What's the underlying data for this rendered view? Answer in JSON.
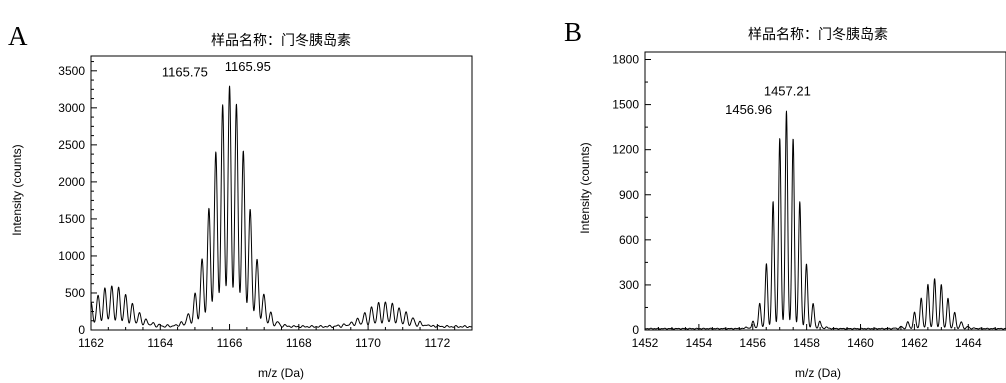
{
  "chart_data": [
    {
      "type": "line",
      "panel": "A",
      "title": "样品名称：门冬胰岛素",
      "xlabel": "m/z (Da)",
      "ylabel": "Intensity (counts)",
      "xlim": [
        1162,
        1173
      ],
      "ylim": [
        0,
        3700
      ],
      "xticks": [
        1162,
        1164,
        1166,
        1168,
        1170,
        1172
      ],
      "yticks": [
        0,
        500,
        1000,
        1500,
        2000,
        2500,
        3000,
        3500
      ],
      "annotations": [
        {
          "text": "1165.75",
          "x": 1165.75,
          "y": 3300
        },
        {
          "text": "1165.95",
          "x": 1165.95,
          "y": 3350
        }
      ],
      "series": [
        {
          "baseline": 60,
          "envelopes": [
            {
              "center": 1162.6,
              "sigma": 0.55,
              "height": 560,
              "spacing": 0.2
            },
            {
              "center": 1166.0,
              "sigma": 0.5,
              "height": 3250,
              "spacing": 0.2
            },
            {
              "center": 1170.5,
              "sigma": 0.55,
              "height": 340,
              "spacing": 0.2
            }
          ]
        }
      ]
    },
    {
      "type": "line",
      "panel": "B",
      "title": "样品名称：门冬胰岛素",
      "xlabel": "m/z (Da)",
      "ylabel": "Intensity (counts)",
      "xlim": [
        1452,
        1465.4
      ],
      "ylim": [
        0,
        1850
      ],
      "xticks": [
        1452,
        1454,
        1456,
        1458,
        1460,
        1462,
        1464
      ],
      "yticks": [
        0,
        300,
        600,
        900,
        1200,
        1500,
        1800
      ],
      "annotations": [
        {
          "text": "1456.96",
          "x": 1456.96,
          "y": 1370
        },
        {
          "text": "1457.21",
          "x": 1457.21,
          "y": 1480
        }
      ],
      "series": [
        {
          "baseline": 12,
          "envelopes": [
            {
              "center": 1457.25,
              "sigma": 0.48,
              "height": 1450,
              "spacing": 0.25
            },
            {
              "center": 1462.75,
              "sigma": 0.5,
              "height": 330,
              "spacing": 0.25
            }
          ]
        }
      ]
    }
  ]
}
